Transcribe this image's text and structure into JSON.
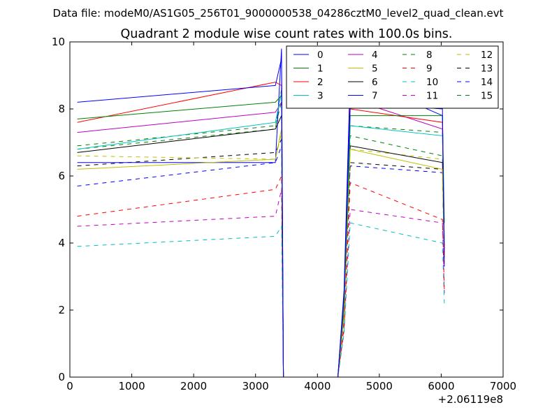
{
  "header": "Data file: modeM0/AS1G05_256T01_9000000538_04286cztM0_level2_quad_clean.evt",
  "chart_data": {
    "type": "line",
    "title": "Quadrant 2 module wise count rates with 100.0s bins.",
    "xlabel": "",
    "ylabel": "",
    "xlim": [
      0,
      7000
    ],
    "ylim": [
      0,
      10
    ],
    "x_ticks": [
      0,
      1000,
      2000,
      3000,
      4000,
      5000,
      6000,
      7000
    ],
    "y_ticks": [
      0,
      2,
      4,
      6,
      8,
      10
    ],
    "x_tick_labels": [
      "0",
      "1000",
      "2000",
      "3000",
      "4000",
      "5000",
      "6000",
      "7000"
    ],
    "y_tick_labels": [
      "0",
      "2",
      "4",
      "6",
      "8",
      "10"
    ],
    "x_offset_label": "+2.06119e8",
    "grid": false,
    "legend_position": "top-right",
    "legend_columns": 4,
    "x": [
      120,
      3320,
      3420,
      3450,
      4330,
      4430,
      4530,
      6020,
      6050
    ],
    "series": [
      {
        "name": "0",
        "color": "#0000ff",
        "dash": "solid",
        "values": [
          8.2,
          8.7,
          9.5,
          0,
          0,
          2.5,
          8.2,
          8.0,
          3.3
        ]
      },
      {
        "name": "1",
        "color": "#008000",
        "dash": "solid",
        "values": [
          7.7,
          8.2,
          8.4,
          0,
          0,
          2.3,
          7.8,
          7.8,
          4.6
        ]
      },
      {
        "name": "2",
        "color": "#ff0000",
        "dash": "solid",
        "values": [
          7.6,
          8.8,
          8.7,
          0,
          0,
          2.2,
          8.0,
          7.6,
          3.6
        ]
      },
      {
        "name": "3",
        "color": "#00bfbf",
        "dash": "solid",
        "values": [
          6.8,
          7.6,
          8.5,
          0,
          0,
          2.1,
          7.5,
          7.2,
          4.0
        ]
      },
      {
        "name": "4",
        "color": "#bf00bf",
        "dash": "solid",
        "values": [
          7.3,
          7.9,
          8.2,
          0,
          0,
          2.2,
          8.3,
          7.4,
          3.8
        ]
      },
      {
        "name": "5",
        "color": "#bfbf00",
        "dash": "solid",
        "values": [
          6.2,
          6.5,
          7.4,
          0,
          0,
          1.8,
          6.8,
          6.2,
          3.4
        ]
      },
      {
        "name": "6",
        "color": "#000000",
        "dash": "solid",
        "values": [
          6.7,
          7.4,
          7.8,
          0,
          0,
          2.0,
          6.9,
          6.4,
          3.7
        ]
      },
      {
        "name": "7",
        "color": "#0000ff",
        "dash": "solid",
        "values": [
          6.4,
          6.4,
          9.8,
          0,
          0,
          2.6,
          9.0,
          7.8,
          3.9
        ]
      },
      {
        "name": "8",
        "color": "#008000",
        "dash": "dashed",
        "values": [
          6.8,
          7.4,
          8.6,
          0,
          0,
          2.0,
          7.2,
          6.6,
          3.5
        ]
      },
      {
        "name": "9",
        "color": "#ff0000",
        "dash": "dashed",
        "values": [
          4.8,
          5.6,
          6.0,
          0,
          0,
          1.5,
          5.8,
          4.7,
          2.6
        ]
      },
      {
        "name": "10",
        "color": "#00bfbf",
        "dash": "dashed",
        "values": [
          3.9,
          4.2,
          4.5,
          0,
          0,
          1.3,
          4.6,
          4.0,
          2.2
        ]
      },
      {
        "name": "11",
        "color": "#bf00bf",
        "dash": "dashed",
        "values": [
          4.5,
          4.8,
          5.6,
          0,
          0,
          1.4,
          5.0,
          4.6,
          2.5
        ]
      },
      {
        "name": "12",
        "color": "#bfbf00",
        "dash": "dashed",
        "values": [
          6.6,
          6.5,
          7.3,
          0,
          0,
          1.9,
          6.8,
          6.5,
          3.6
        ]
      },
      {
        "name": "13",
        "color": "#000000",
        "dash": "dashed",
        "values": [
          6.3,
          6.7,
          7.1,
          0,
          0,
          1.8,
          6.4,
          6.2,
          3.4
        ]
      },
      {
        "name": "14",
        "color": "#0000ff",
        "dash": "dashed",
        "values": [
          5.7,
          6.4,
          6.9,
          0,
          0,
          1.7,
          6.3,
          6.1,
          3.5
        ]
      },
      {
        "name": "15",
        "color": "#008000",
        "dash": "dashed",
        "values": [
          6.9,
          7.5,
          8.2,
          0,
          0,
          2.1,
          7.5,
          7.3,
          3.8
        ]
      }
    ]
  }
}
